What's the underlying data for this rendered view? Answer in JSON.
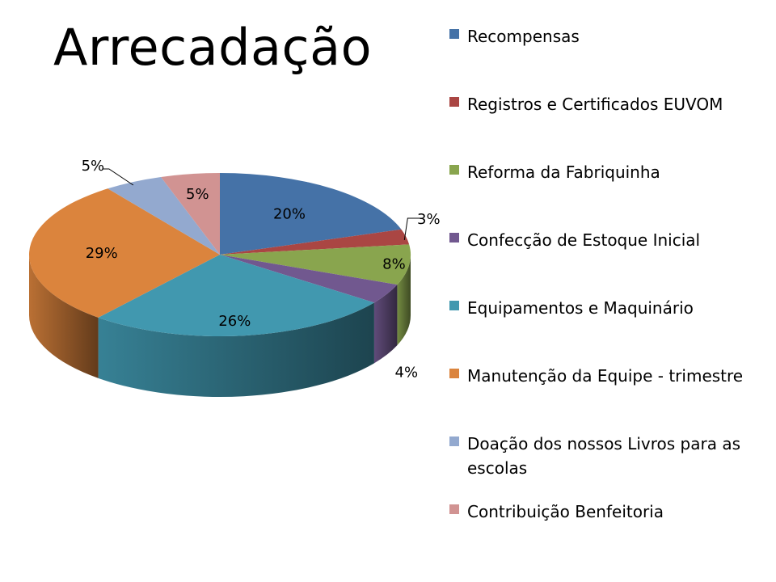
{
  "title": "Arrecadação",
  "chart_data": {
    "type": "pie",
    "title": "Arrecadação",
    "legend_position": "right",
    "categories": [
      "Recompensas",
      "Registros e Certificados EUVOM",
      "Reforma da Fabriquinha",
      "Confecção de Estoque Inicial",
      "Equipamentos e Maquinário",
      "Manutenção da Equipe - trimestre",
      "Doação dos nossos Livros para as escolas",
      "Contribuição Benfeitoria"
    ],
    "values": [
      20,
      3,
      8,
      4,
      26,
      29,
      5,
      5
    ],
    "data_labels": [
      "20%",
      "3%",
      "8%",
      "4%",
      "26%",
      "29%",
      "5%",
      "5%"
    ],
    "colors": [
      "#4572A7",
      "#AA4643",
      "#89A54E",
      "#71588F",
      "#4198AF",
      "#DB843D",
      "#93A9CF",
      "#D19392"
    ]
  }
}
